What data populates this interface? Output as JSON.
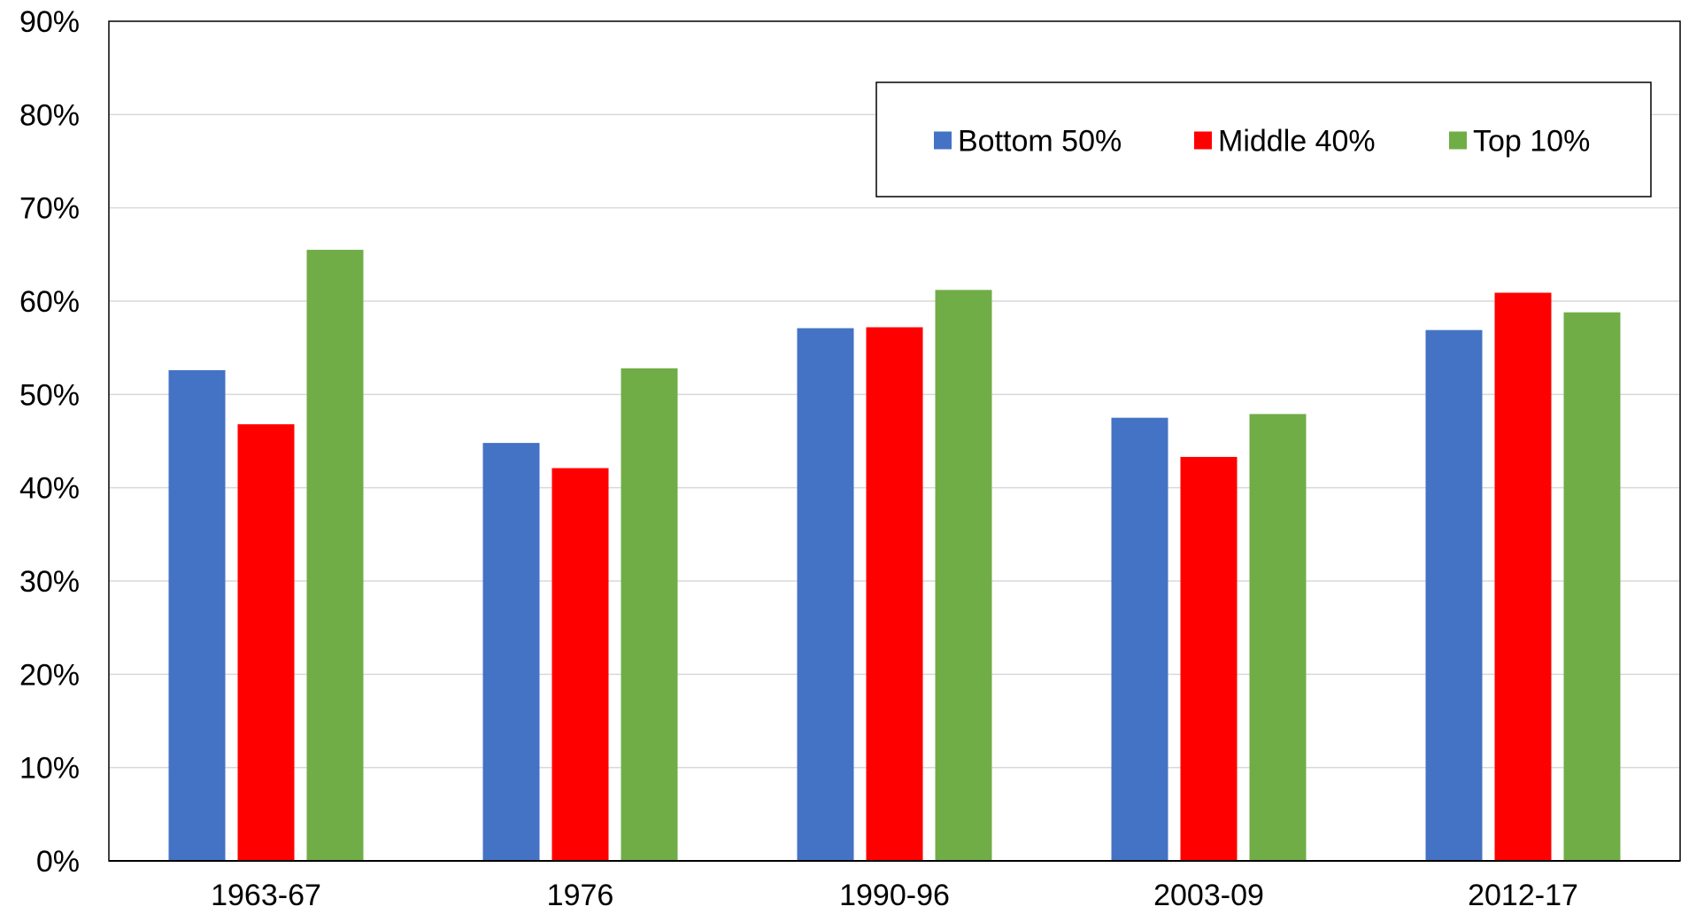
{
  "chart_data": {
    "type": "bar",
    "categories": [
      "1963-67",
      "1976",
      "1990-96",
      "2003-09",
      "2012-17"
    ],
    "series": [
      {
        "name": "Bottom 50%",
        "color": "#4472C4",
        "values": [
          52.6,
          44.8,
          57.1,
          47.5,
          56.9
        ]
      },
      {
        "name": "Middle 40%",
        "color": "#FF0000",
        "values": [
          46.8,
          42.1,
          57.2,
          43.3,
          60.9
        ]
      },
      {
        "name": "Top 10%",
        "color": "#70AD47",
        "values": [
          65.5,
          52.8,
          61.2,
          47.9,
          58.8
        ]
      }
    ],
    "ylim": [
      0,
      90
    ],
    "yticks": [
      0,
      10,
      20,
      30,
      40,
      50,
      60,
      70,
      80,
      90
    ],
    "ytick_labels": [
      "0%",
      "10%",
      "20%",
      "30%",
      "40%",
      "50%",
      "60%",
      "70%",
      "80%",
      "90%"
    ],
    "grid": true,
    "legend_position": "top-right",
    "title": "",
    "xlabel": "",
    "ylabel": ""
  }
}
